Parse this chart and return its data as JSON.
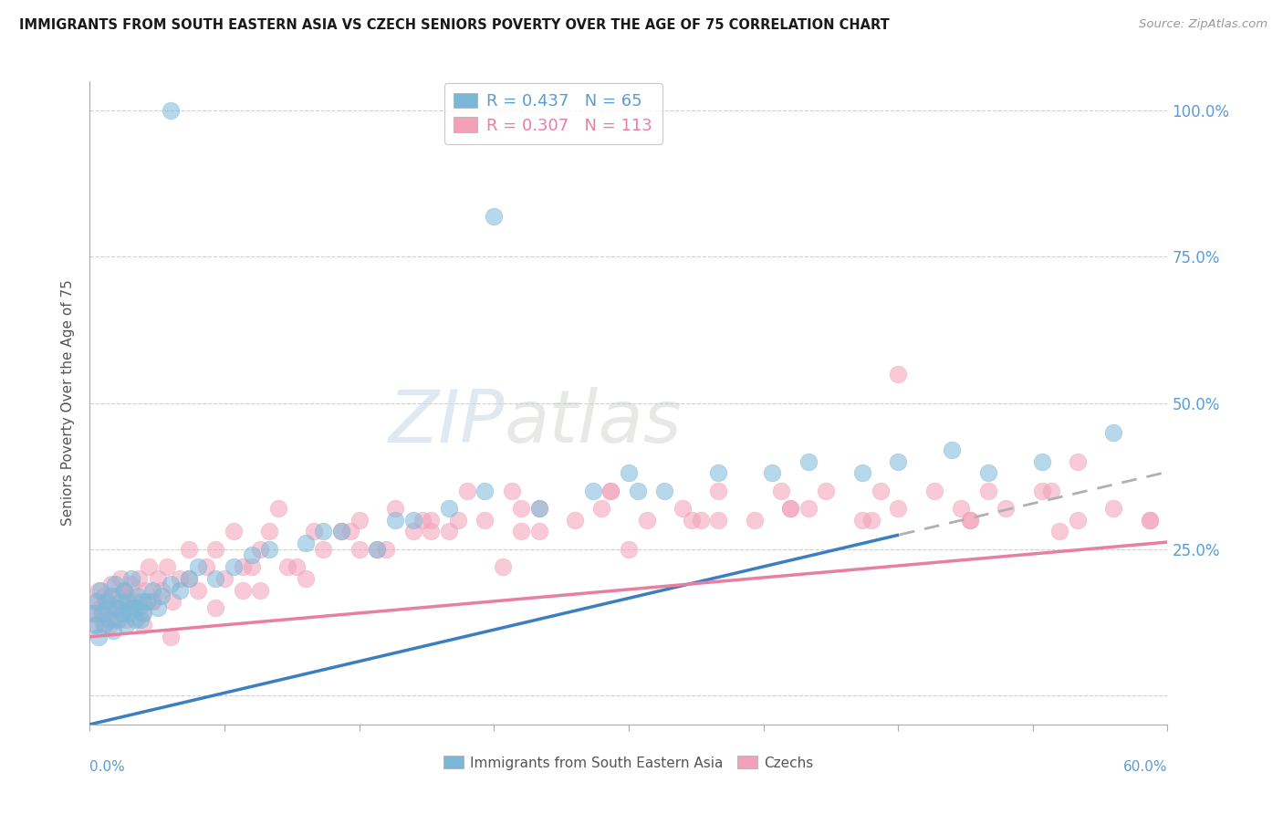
{
  "title": "IMMIGRANTS FROM SOUTH EASTERN ASIA VS CZECH SENIORS POVERTY OVER THE AGE OF 75 CORRELATION CHART",
  "source": "Source: ZipAtlas.com",
  "ylabel": "Seniors Poverty Over the Age of 75",
  "blue_label": "Immigrants from South Eastern Asia",
  "pink_label": "Czechs",
  "xlim": [
    0.0,
    60.0
  ],
  "ylim": [
    -5.0,
    105.0
  ],
  "yticks": [
    0,
    25,
    50,
    75,
    100
  ],
  "ytick_labels": [
    "",
    "25.0%",
    "50.0%",
    "75.0%",
    "100.0%"
  ],
  "legend_blue": "R = 0.437   N = 65",
  "legend_pink": "R = 0.307   N = 113",
  "blue_color": "#7ab8d9",
  "pink_color": "#f4a0b8",
  "blue_line_color": "#3a7fc1",
  "pink_line_color": "#e87fa0",
  "dash_color": "#b0b0b0",
  "blue_intercept": -5.0,
  "blue_slope": 0.72,
  "pink_intercept": 10.0,
  "pink_slope": 0.27,
  "dash_start_x": 45.0,
  "blue_scatter_x": [
    0.2,
    0.3,
    0.4,
    0.5,
    0.6,
    0.7,
    0.8,
    0.9,
    1.0,
    1.1,
    1.2,
    1.3,
    1.4,
    1.5,
    1.6,
    1.7,
    1.8,
    1.9,
    2.0,
    2.1,
    2.2,
    2.3,
    2.4,
    2.5,
    2.6,
    2.7,
    2.8,
    2.9,
    3.0,
    3.2,
    3.5,
    3.8,
    4.0,
    4.5,
    5.0,
    5.5,
    6.0,
    7.0,
    8.0,
    9.0,
    10.0,
    12.0,
    14.0,
    16.0,
    18.0,
    20.0,
    22.0,
    25.0,
    28.0,
    30.0,
    32.0,
    35.0,
    38.0,
    40.0,
    43.0,
    45.0,
    48.0,
    50.0,
    53.0,
    57.0,
    30.5,
    22.5,
    17.0,
    13.0,
    4.5
  ],
  "blue_scatter_y": [
    14.0,
    12.0,
    16.0,
    10.0,
    18.0,
    14.0,
    12.0,
    16.0,
    15.0,
    13.0,
    17.0,
    11.0,
    19.0,
    15.0,
    13.0,
    16.0,
    14.0,
    18.0,
    12.0,
    16.0,
    14.0,
    20.0,
    15.0,
    13.0,
    17.0,
    15.0,
    13.0,
    16.0,
    14.0,
    16.0,
    18.0,
    15.0,
    17.0,
    19.0,
    18.0,
    20.0,
    22.0,
    20.0,
    22.0,
    24.0,
    25.0,
    26.0,
    28.0,
    25.0,
    30.0,
    32.0,
    35.0,
    32.0,
    35.0,
    38.0,
    35.0,
    38.0,
    38.0,
    40.0,
    38.0,
    40.0,
    42.0,
    38.0,
    40.0,
    45.0,
    35.0,
    82.0,
    30.0,
    28.0,
    100.0
  ],
  "pink_scatter_x": [
    0.2,
    0.3,
    0.4,
    0.5,
    0.6,
    0.7,
    0.8,
    0.9,
    1.0,
    1.1,
    1.2,
    1.3,
    1.4,
    1.5,
    1.6,
    1.7,
    1.8,
    1.9,
    2.0,
    2.1,
    2.2,
    2.3,
    2.5,
    2.7,
    2.9,
    3.1,
    3.3,
    3.5,
    3.8,
    4.0,
    4.3,
    4.6,
    5.0,
    5.5,
    6.0,
    6.5,
    7.0,
    7.5,
    8.0,
    8.5,
    9.0,
    9.5,
    10.0,
    11.0,
    12.0,
    13.0,
    14.0,
    15.0,
    16.0,
    17.0,
    18.0,
    19.0,
    20.0,
    21.0,
    22.0,
    23.0,
    24.0,
    25.0,
    27.0,
    29.0,
    31.0,
    33.0,
    35.0,
    37.0,
    39.0,
    41.0,
    43.0,
    45.0,
    47.0,
    49.0,
    51.0,
    53.0,
    55.0,
    57.0,
    59.0,
    3.0,
    5.5,
    8.5,
    12.5,
    16.5,
    20.5,
    25.0,
    30.0,
    35.0,
    40.0,
    45.0,
    50.0,
    55.0,
    10.5,
    14.5,
    18.5,
    23.5,
    28.5,
    33.5,
    38.5,
    43.5,
    48.5,
    53.5,
    4.5,
    7.0,
    9.5,
    11.5,
    15.0,
    19.0,
    24.0,
    29.0,
    34.0,
    39.0,
    44.0,
    49.0,
    54.0,
    59.0,
    3.5
  ],
  "pink_scatter_y": [
    14.0,
    16.0,
    12.0,
    18.0,
    15.0,
    13.0,
    17.0,
    14.0,
    16.0,
    12.0,
    19.0,
    15.0,
    13.0,
    17.0,
    15.0,
    20.0,
    14.0,
    18.0,
    13.0,
    17.0,
    15.0,
    19.0,
    16.0,
    20.0,
    14.0,
    18.0,
    22.0,
    16.0,
    20.0,
    18.0,
    22.0,
    16.0,
    20.0,
    25.0,
    18.0,
    22.0,
    25.0,
    20.0,
    28.0,
    18.0,
    22.0,
    25.0,
    28.0,
    22.0,
    20.0,
    25.0,
    28.0,
    30.0,
    25.0,
    32.0,
    28.0,
    30.0,
    28.0,
    35.0,
    30.0,
    22.0,
    28.0,
    32.0,
    30.0,
    35.0,
    30.0,
    32.0,
    35.0,
    30.0,
    32.0,
    35.0,
    30.0,
    32.0,
    35.0,
    30.0,
    32.0,
    35.0,
    30.0,
    32.0,
    30.0,
    12.0,
    20.0,
    22.0,
    28.0,
    25.0,
    30.0,
    28.0,
    25.0,
    30.0,
    32.0,
    55.0,
    35.0,
    40.0,
    32.0,
    28.0,
    30.0,
    35.0,
    32.0,
    30.0,
    35.0,
    30.0,
    32.0,
    35.0,
    10.0,
    15.0,
    18.0,
    22.0,
    25.0,
    28.0,
    32.0,
    35.0,
    30.0,
    32.0,
    35.0,
    30.0,
    28.0,
    30.0,
    16.0
  ]
}
